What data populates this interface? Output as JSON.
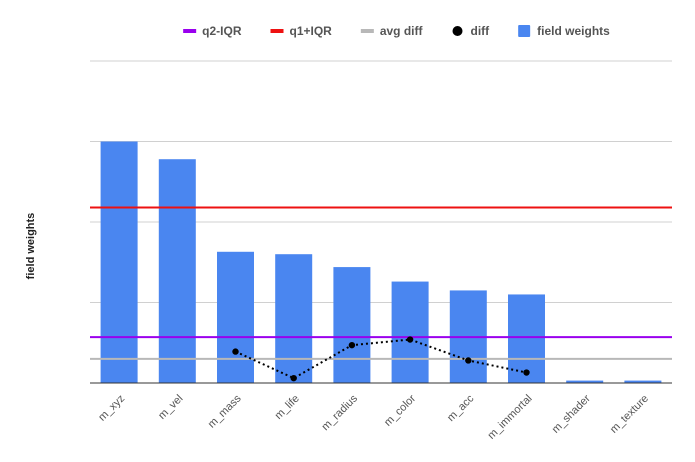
{
  "chart_data": {
    "type": "bar",
    "ylabel": "field weights",
    "categories": [
      "m_xyz",
      "m_vel",
      "m_mass",
      "m_life",
      "m_radius",
      "m_color",
      "m_acc",
      "m_immortal",
      "m_shader",
      "m_texture"
    ],
    "ylim": [
      0,
      4
    ],
    "grid": true,
    "legend_position": "top",
    "series": [
      {
        "name": "field weights",
        "kind": "bar",
        "color": "#4a86f0",
        "values": [
          3.0,
          2.78,
          1.63,
          1.6,
          1.44,
          1.26,
          1.15,
          1.1,
          0.03,
          0.03
        ]
      },
      {
        "name": "diff",
        "kind": "dotted-line",
        "color": "#000000",
        "points": [
          {
            "category": "m_mass",
            "value": 0.39
          },
          {
            "category": "m_life",
            "value": 0.06
          },
          {
            "category": "m_radius",
            "value": 0.47
          },
          {
            "category": "m_color",
            "value": 0.54
          },
          {
            "category": "m_acc",
            "value": 0.28
          },
          {
            "category": "m_immortal",
            "value": 0.13
          }
        ]
      },
      {
        "name": "q2-IQR",
        "kind": "hline",
        "color": "#9900ee",
        "value": 0.57
      },
      {
        "name": "q1+IQR",
        "kind": "hline",
        "color": "#ee1111",
        "value": 2.18
      },
      {
        "name": "avg diff",
        "kind": "hline",
        "color": "#b8b8b8",
        "value": 0.3
      }
    ],
    "legend": [
      {
        "label": "q2-IQR",
        "symbol": "line",
        "color": "#9900ee"
      },
      {
        "label": "q1+IQR",
        "symbol": "line",
        "color": "#ee1111"
      },
      {
        "label": "avg diff",
        "symbol": "line",
        "color": "#b8b8b8"
      },
      {
        "label": "diff",
        "symbol": "dot",
        "color": "#000000"
      },
      {
        "label": "field weights",
        "symbol": "square",
        "color": "#4a86f0"
      }
    ]
  }
}
